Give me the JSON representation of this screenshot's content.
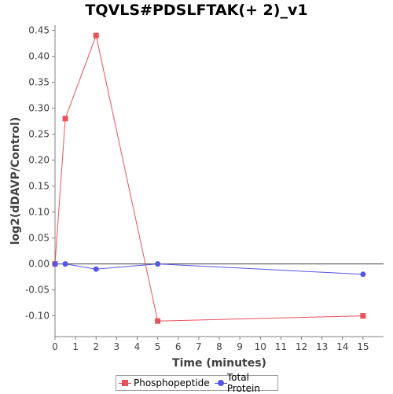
{
  "chart_data": {
    "type": "line",
    "title": "TQVLS#PDSLFTAK(+ 2)_v1",
    "xlabel": "Time (minutes)",
    "ylabel": "log2(dDAVP/Control)",
    "xlim": [
      0,
      16
    ],
    "ylim": [
      -0.14,
      0.46
    ],
    "xticks": [
      0,
      1,
      2,
      3,
      4,
      5,
      6,
      7,
      8,
      9,
      10,
      11,
      12,
      13,
      14,
      15
    ],
    "yticks": [
      -0.1,
      -0.05,
      0.0,
      0.05,
      0.1,
      0.15,
      0.2,
      0.25,
      0.3,
      0.35,
      0.4,
      0.45
    ],
    "ytick_labels": [
      "-0.10",
      "-0.05",
      "0.00",
      "0.05",
      "0.10",
      "0.15",
      "0.20",
      "0.25",
      "0.30",
      "0.35",
      "0.40",
      "0.45"
    ],
    "zero_line": true,
    "grid": false,
    "legend_position": "bottom-center",
    "series": [
      {
        "name": "Phosphopeptide",
        "color": "#e8535a",
        "marker": "square",
        "x": [
          0,
          0.5,
          2,
          5,
          15
        ],
        "y": [
          0.0,
          0.28,
          0.44,
          -0.11,
          -0.1
        ]
      },
      {
        "name": "Total Protein",
        "color": "#5456e8",
        "marker": "circle",
        "x": [
          0,
          0.5,
          2,
          5,
          15
        ],
        "y": [
          0.0,
          0.0,
          -0.01,
          0.0,
          -0.02
        ]
      }
    ]
  }
}
